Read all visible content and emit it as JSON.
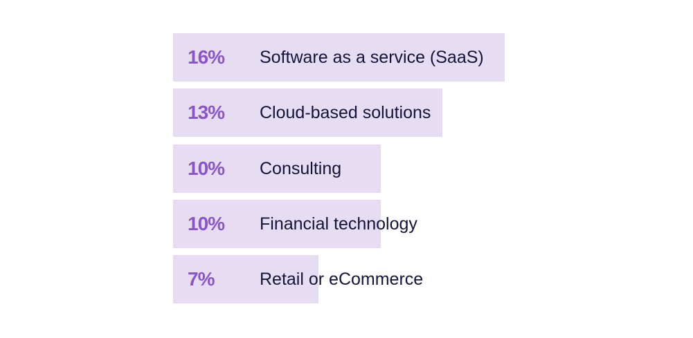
{
  "chart_data": {
    "type": "bar",
    "orientation": "horizontal",
    "title": "",
    "xlabel": "",
    "ylabel": "",
    "categories": [
      "Software as a service (SaaS)",
      "Cloud-based solutions",
      "Consulting",
      "Financial technology",
      "Retail or eCommerce"
    ],
    "values": [
      16,
      13,
      10,
      10,
      7
    ],
    "value_labels": [
      "16%",
      "13%",
      "10%",
      "10%",
      "7%"
    ],
    "grid": false,
    "legend": null,
    "colors": {
      "bar": "#e6ddf2",
      "value_text": "#8a55c8",
      "label_text": "#14143a"
    }
  },
  "rows": [
    {
      "pct": "16%",
      "label": "Software as a service (SaaS)",
      "value": 16
    },
    {
      "pct": "13%",
      "label": "Cloud-based solutions",
      "value": 13
    },
    {
      "pct": "10%",
      "label": "Consulting",
      "value": 10
    },
    {
      "pct": "10%",
      "label": "Financial technology",
      "value": 10
    },
    {
      "pct": "7%",
      "label": "Retail or eCommerce",
      "value": 7
    }
  ]
}
